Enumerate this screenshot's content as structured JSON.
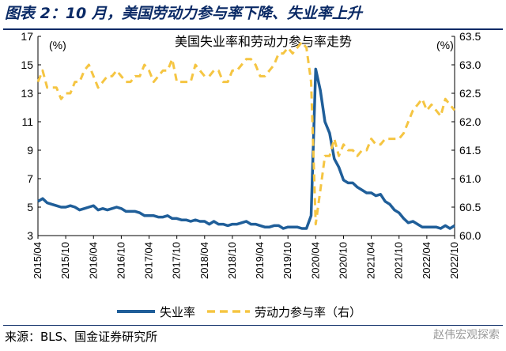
{
  "figure": {
    "label": "图表 2：10 月，美国劳动力参与率下降、失业率上升",
    "source": "来源：BLS、国金证券研究所",
    "watermark": "赵伟宏观探索"
  },
  "chart_data": {
    "type": "line",
    "title": "美国失业率和劳动力参与率走势",
    "left_axis": {
      "unit_label": "(%)",
      "range": [
        3,
        17
      ],
      "ticks": [
        3,
        5,
        7,
        9,
        11,
        13,
        15,
        17
      ]
    },
    "right_axis": {
      "unit_label": "(%)",
      "range": [
        60.0,
        63.5
      ],
      "ticks": [
        "60.0",
        "60.5",
        "61.0",
        "61.5",
        "62.0",
        "62.5",
        "63.0",
        "63.5"
      ]
    },
    "x_ticks": [
      "2015/04",
      "2015/10",
      "2016/04",
      "2016/10",
      "2017/04",
      "2017/10",
      "2018/04",
      "2018/10",
      "2019/04",
      "2019/10",
      "2020/04",
      "2020/10",
      "2021/04",
      "2021/10",
      "2022/04",
      "2022/10"
    ],
    "grid": false,
    "legend_position": "bottom",
    "colors": {
      "unemployment": "#1f5e99",
      "participation": "#f5c542",
      "axis": "#000000"
    },
    "x": [
      "2015/04",
      "2015/05",
      "2015/06",
      "2015/07",
      "2015/08",
      "2015/09",
      "2015/10",
      "2015/11",
      "2015/12",
      "2016/01",
      "2016/02",
      "2016/03",
      "2016/04",
      "2016/05",
      "2016/06",
      "2016/07",
      "2016/08",
      "2016/09",
      "2016/10",
      "2016/11",
      "2016/12",
      "2017/01",
      "2017/02",
      "2017/03",
      "2017/04",
      "2017/05",
      "2017/06",
      "2017/07",
      "2017/08",
      "2017/09",
      "2017/10",
      "2017/11",
      "2017/12",
      "2018/01",
      "2018/02",
      "2018/03",
      "2018/04",
      "2018/05",
      "2018/06",
      "2018/07",
      "2018/08",
      "2018/09",
      "2018/10",
      "2018/11",
      "2018/12",
      "2019/01",
      "2019/02",
      "2019/03",
      "2019/04",
      "2019/05",
      "2019/06",
      "2019/07",
      "2019/08",
      "2019/09",
      "2019/10",
      "2019/11",
      "2019/12",
      "2020/01",
      "2020/02",
      "2020/03",
      "2020/04",
      "2020/05",
      "2020/06",
      "2020/07",
      "2020/08",
      "2020/09",
      "2020/10",
      "2020/11",
      "2020/12",
      "2021/01",
      "2021/02",
      "2021/03",
      "2021/04",
      "2021/05",
      "2021/06",
      "2021/07",
      "2021/08",
      "2021/09",
      "2021/10",
      "2021/11",
      "2021/12",
      "2022/01",
      "2022/02",
      "2022/03",
      "2022/04",
      "2022/05",
      "2022/06",
      "2022/07",
      "2022/08",
      "2022/09",
      "2022/10"
    ],
    "series": [
      {
        "name": "失业率",
        "axis": "left",
        "values": [
          5.4,
          5.6,
          5.3,
          5.2,
          5.1,
          5.0,
          5.0,
          5.1,
          5.0,
          4.8,
          4.9,
          5.0,
          5.1,
          4.8,
          4.9,
          4.8,
          4.9,
          5.0,
          4.9,
          4.7,
          4.7,
          4.7,
          4.6,
          4.4,
          4.4,
          4.4,
          4.3,
          4.3,
          4.4,
          4.2,
          4.2,
          4.1,
          4.1,
          4.0,
          4.1,
          4.0,
          4.0,
          3.8,
          4.0,
          3.8,
          3.8,
          3.7,
          3.8,
          3.8,
          3.9,
          4.0,
          3.8,
          3.8,
          3.7,
          3.6,
          3.6,
          3.7,
          3.7,
          3.5,
          3.6,
          3.6,
          3.6,
          3.5,
          3.5,
          4.4,
          14.7,
          13.2,
          11.0,
          10.2,
          8.4,
          7.8,
          6.9,
          6.7,
          6.7,
          6.4,
          6.2,
          6.0,
          6.0,
          5.8,
          5.9,
          5.4,
          5.2,
          4.8,
          4.6,
          4.2,
          3.9,
          4.0,
          3.8,
          3.6,
          3.6,
          3.6,
          3.6,
          3.5,
          3.7,
          3.5,
          3.7
        ]
      },
      {
        "name": "劳动力参与率（右）",
        "axis": "right",
        "values": [
          62.7,
          62.9,
          62.6,
          62.6,
          62.6,
          62.4,
          62.5,
          62.5,
          62.7,
          62.7,
          62.9,
          63.0,
          62.8,
          62.6,
          62.7,
          62.8,
          62.8,
          62.9,
          62.8,
          62.7,
          62.7,
          62.8,
          62.8,
          63.0,
          62.9,
          62.7,
          62.8,
          62.9,
          62.9,
          63.1,
          62.7,
          62.7,
          62.7,
          62.7,
          63.0,
          62.9,
          62.8,
          62.8,
          62.9,
          62.9,
          62.7,
          62.7,
          62.9,
          62.9,
          63.0,
          63.1,
          63.1,
          63.0,
          62.8,
          62.8,
          62.9,
          63.0,
          63.2,
          63.2,
          63.3,
          63.2,
          63.3,
          63.4,
          63.3,
          62.7,
          60.2,
          60.8,
          61.4,
          61.4,
          61.7,
          61.4,
          61.6,
          61.5,
          61.5,
          61.4,
          61.5,
          61.5,
          61.7,
          61.6,
          61.6,
          61.7,
          61.7,
          61.7,
          61.7,
          61.8,
          62.0,
          62.2,
          62.3,
          62.4,
          62.2,
          62.3,
          62.2,
          62.1,
          62.4,
          62.3,
          62.2
        ]
      }
    ]
  }
}
